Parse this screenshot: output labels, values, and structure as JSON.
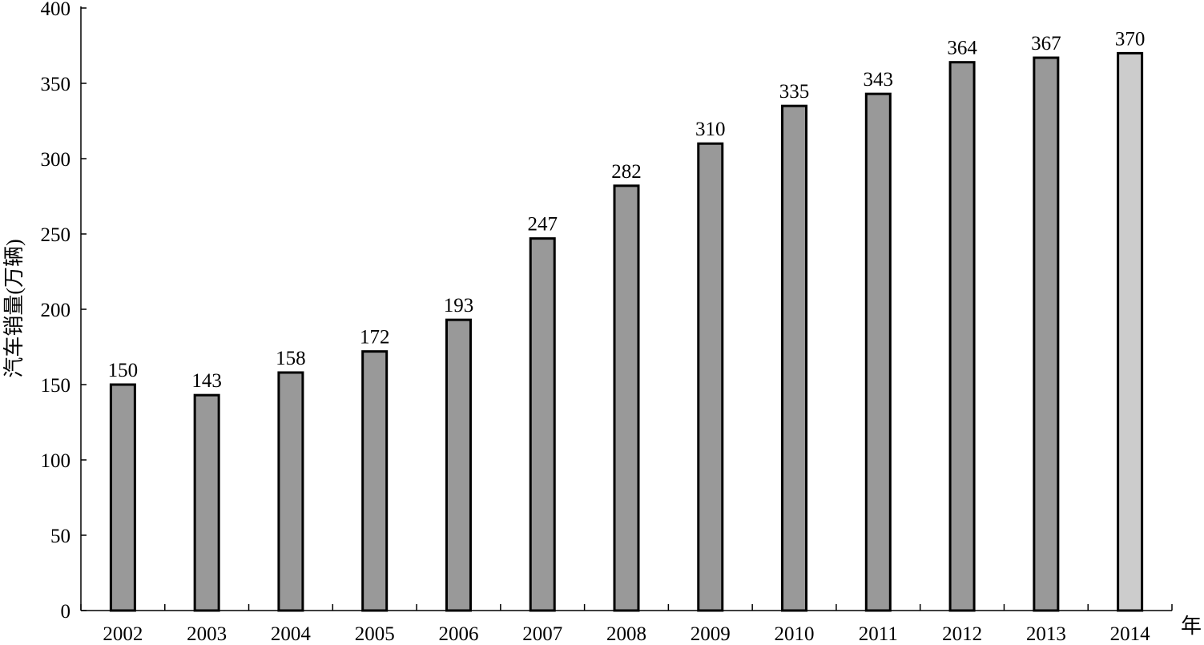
{
  "chart_data": {
    "type": "bar",
    "categories": [
      "2002",
      "2003",
      "2004",
      "2005",
      "2006",
      "2007",
      "2008",
      "2009",
      "2010",
      "2011",
      "2012",
      "2013",
      "2014"
    ],
    "values": [
      150,
      143,
      158,
      172,
      193,
      247,
      282,
      310,
      335,
      343,
      364,
      367,
      370
    ],
    "data_labels": [
      "150",
      "143",
      "158",
      "172",
      "193",
      "247",
      "282",
      "310",
      "335",
      "343",
      "364",
      "367",
      "370"
    ],
    "title": "",
    "xlabel": "年",
    "ylabel": "汽车销量(万辆)",
    "ylim": [
      0,
      400
    ],
    "yticks": [
      "0",
      "50",
      "100",
      "150",
      "200",
      "250",
      "300",
      "350",
      "400"
    ],
    "grid": false,
    "legend": "none",
    "colors": {
      "bar": "#999999",
      "bar_highlight": "#cccccc",
      "bar_stroke": "#000000",
      "axis": "#000000"
    },
    "highlight_category": "2014"
  }
}
